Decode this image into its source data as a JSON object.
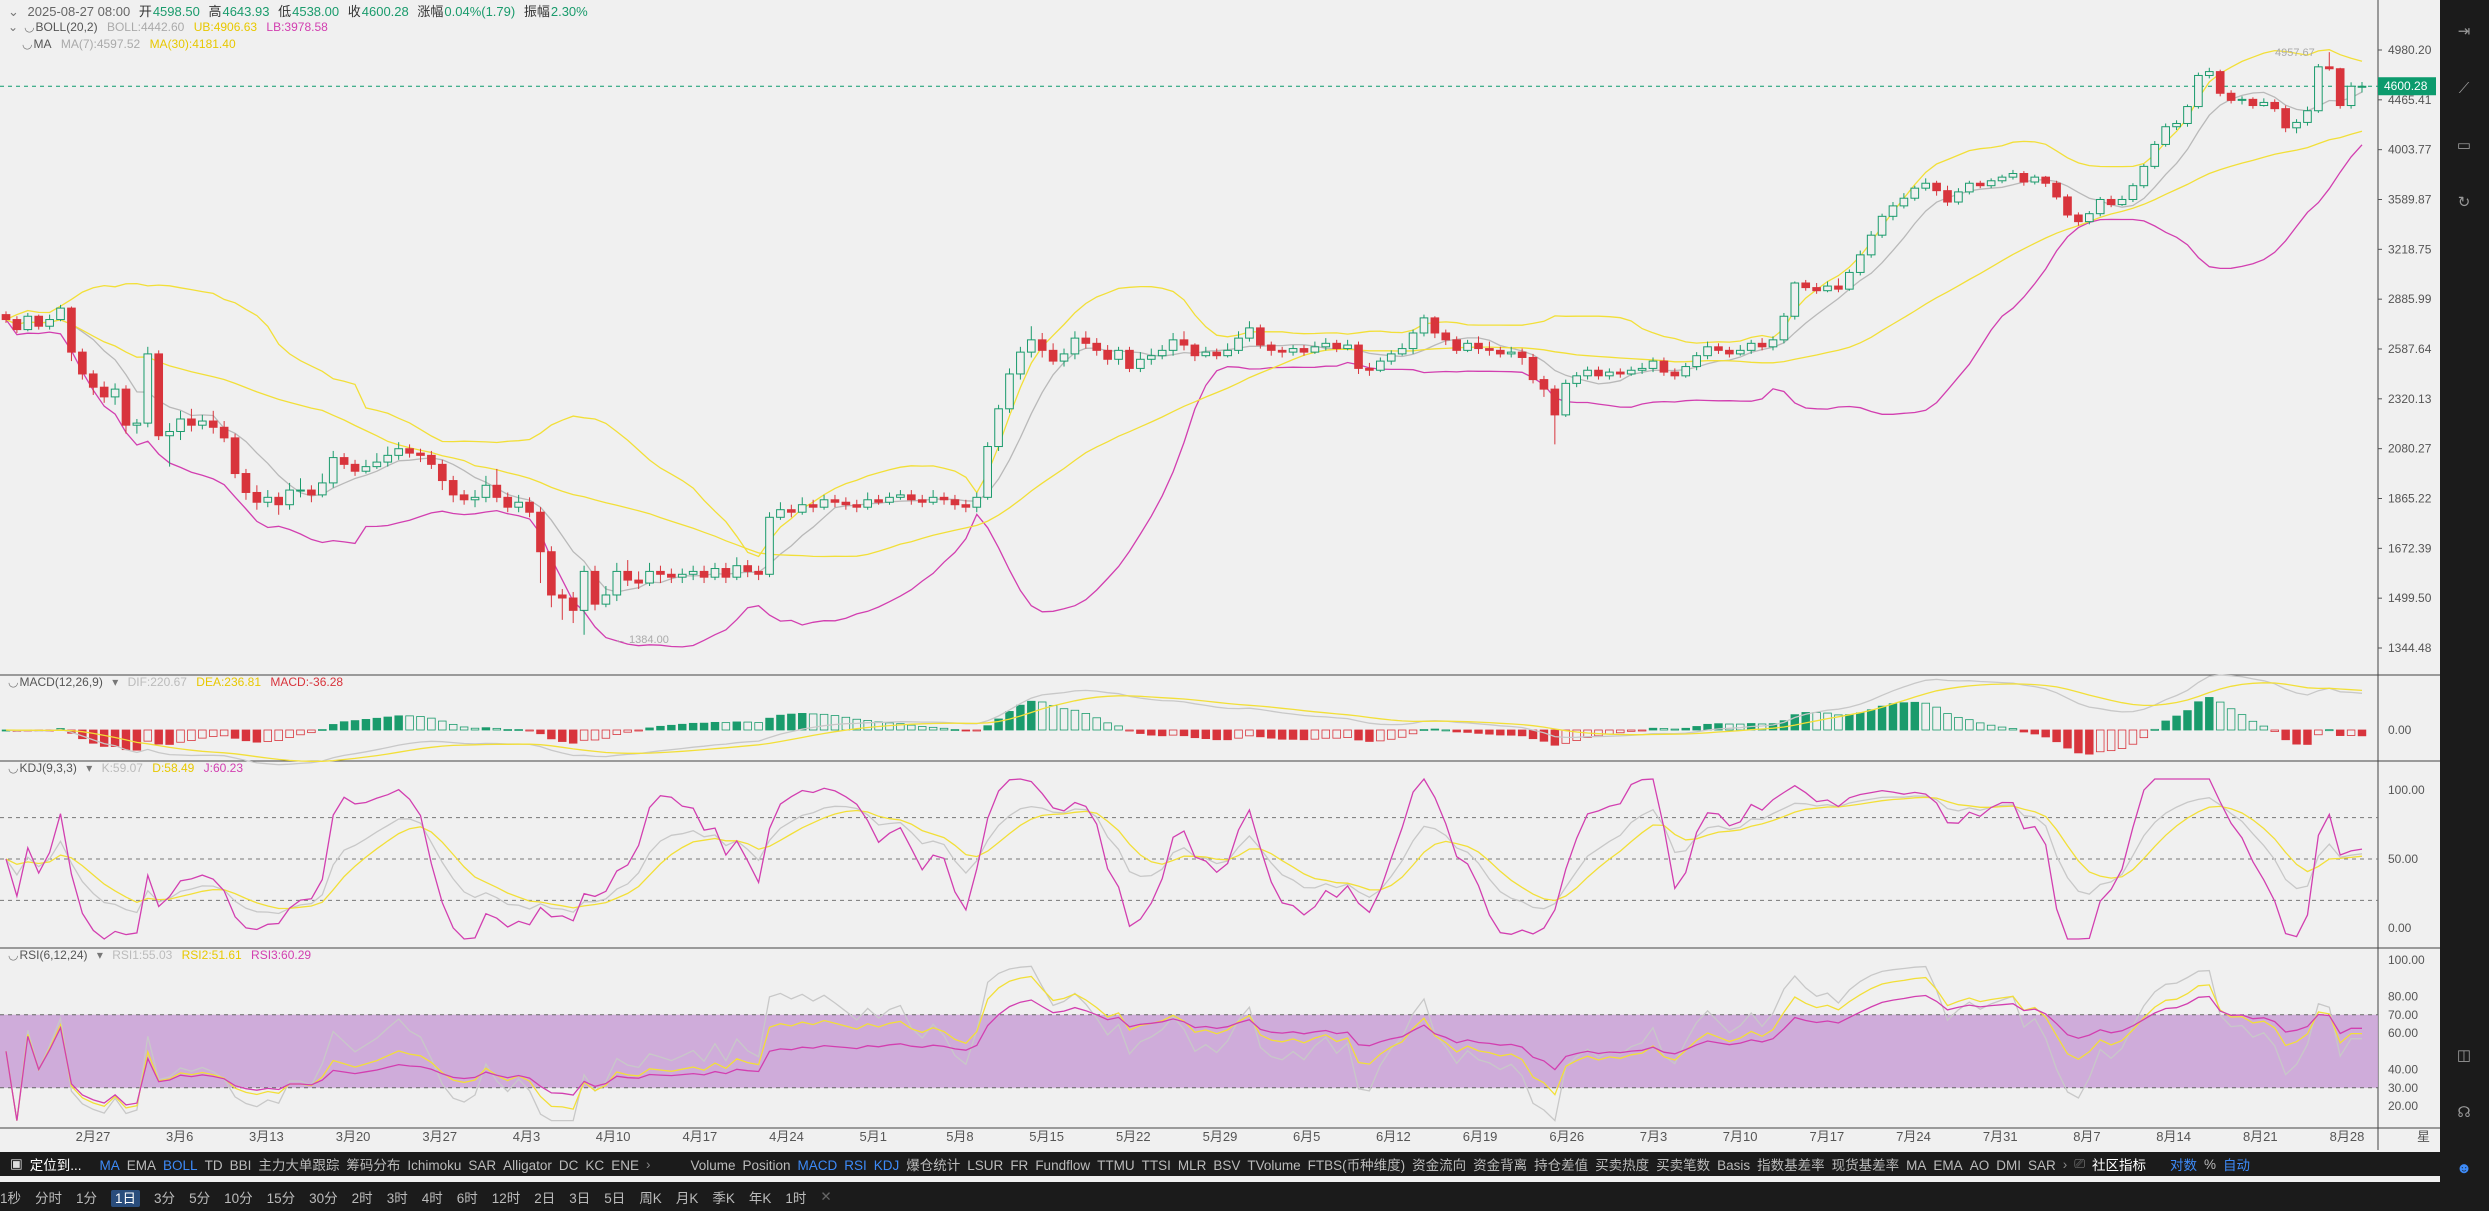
{
  "header": {
    "date": "2025-08-27 08:00",
    "open_label": "开",
    "open": "4598.50",
    "high_label": "高",
    "high": "4643.93",
    "low_label": "低",
    "low": "4538.00",
    "close_label": "收",
    "close": "4600.28",
    "change_label": "涨幅",
    "change": "0.04%(1.79)",
    "amp_label": "振幅",
    "amp": "2.30%"
  },
  "overlays": {
    "boll": {
      "name": "BOLL(20,2)",
      "mid": "BOLL:4442.60",
      "ub": "UB:4906.63",
      "lb": "LB:3978.58"
    },
    "ma": {
      "name": "MA",
      "ma7": "MA(7):4597.52",
      "ma30": "MA(30):4181.40"
    }
  },
  "panels": {
    "macd": {
      "name": "MACD(12,26,9)",
      "dif": "DIF:220.67",
      "dea": "DEA:236.81",
      "macd": "MACD:-36.28"
    },
    "kdj": {
      "name": "KDJ(9,3,3)",
      "k": "K:59.07",
      "d": "D:58.49",
      "j": "J:60.23"
    },
    "rsi": {
      "name": "RSI(6,12,24)",
      "r1": "RSI1:55.03",
      "r2": "RSI2:51.61",
      "r3": "RSI3:60.29"
    }
  },
  "colors": {
    "up": "#1a9b6c",
    "down": "#d8343c",
    "boll_band": "#f2df38",
    "boll_lower": "#d23fb0",
    "ma_mid": "#b9b9b9",
    "price_tag": "#0c9b6d",
    "rsi_band": "#c9a0d6",
    "accent": "#3d8af7"
  },
  "chart_data": {
    "type": "candlestick",
    "current_price": "4600.28",
    "high_marker": "4957.67",
    "low_marker": "1384.00",
    "y_axis_labels": [
      "4980.20",
      "4465.41",
      "4003.77",
      "3589.87",
      "3218.75",
      "2885.99",
      "2587.64",
      "2320.13",
      "2080.27",
      "1865.22",
      "1672.39",
      "1499.50",
      "1344.48"
    ],
    "macd_axis_labels": [
      "0.00"
    ],
    "kdj_axis_labels": [
      "100.00",
      "50.00",
      "0.00"
    ],
    "rsi_axis_labels": [
      "100.00",
      "80.00",
      "70.00",
      "60.00",
      "40.00",
      "30.00",
      "20.00"
    ],
    "x_labels": [
      "2月27",
      "3月6",
      "3月13",
      "3月20",
      "3月27",
      "4月3",
      "4月10",
      "4月17",
      "4月24",
      "5月1",
      "5月8",
      "5月15",
      "5月22",
      "5月29",
      "6月5",
      "6月12",
      "6月19",
      "6月26",
      "7月3",
      "7月10",
      "7月17",
      "7月24",
      "7月31",
      "8月7",
      "8月14",
      "8月21",
      "8月28"
    ],
    "x_label_tail": "星",
    "candles": [
      [
        2790,
        2760,
        2810,
        2740
      ],
      [
        2760,
        2700,
        2780,
        2680
      ],
      [
        2700,
        2780,
        2800,
        2690
      ],
      [
        2780,
        2720,
        2790,
        2700
      ],
      [
        2720,
        2760,
        2790,
        2700
      ],
      [
        2760,
        2830,
        2850,
        2750
      ],
      [
        2830,
        2570,
        2840,
        2520
      ],
      [
        2570,
        2450,
        2590,
        2420
      ],
      [
        2450,
        2380,
        2470,
        2340
      ],
      [
        2380,
        2330,
        2410,
        2300
      ],
      [
        2330,
        2370,
        2400,
        2290
      ],
      [
        2370,
        2190,
        2390,
        2150
      ],
      [
        2190,
        2200,
        2220,
        2150
      ],
      [
        2200,
        2560,
        2600,
        2180
      ],
      [
        2560,
        2140,
        2580,
        2120
      ],
      [
        2140,
        2160,
        2200,
        2000
      ],
      [
        2160,
        2220,
        2260,
        2120
      ],
      [
        2220,
        2190,
        2270,
        2160
      ],
      [
        2190,
        2210,
        2240,
        2170
      ],
      [
        2210,
        2180,
        2260,
        2150
      ],
      [
        2180,
        2130,
        2210,
        2110
      ],
      [
        2130,
        1970,
        2150,
        1950
      ],
      [
        1970,
        1890,
        1990,
        1860
      ],
      [
        1890,
        1850,
        1920,
        1820
      ],
      [
        1850,
        1870,
        1900,
        1830
      ],
      [
        1870,
        1840,
        1890,
        1800
      ],
      [
        1840,
        1900,
        1930,
        1820
      ],
      [
        1900,
        1900,
        1950,
        1870
      ],
      [
        1900,
        1880,
        1920,
        1850
      ],
      [
        1880,
        1930,
        1970,
        1870
      ],
      [
        1930,
        2040,
        2070,
        1910
      ],
      [
        2040,
        2010,
        2060,
        1990
      ],
      [
        2010,
        1980,
        2030,
        1960
      ],
      [
        1980,
        2000,
        2030,
        1970
      ],
      [
        2000,
        2020,
        2060,
        1990
      ],
      [
        2020,
        2050,
        2090,
        2000
      ],
      [
        2050,
        2080,
        2110,
        2030
      ],
      [
        2080,
        2060,
        2100,
        2040
      ],
      [
        2060,
        2050,
        2080,
        2020
      ],
      [
        2050,
        2010,
        2070,
        1990
      ],
      [
        2010,
        1940,
        2030,
        1900
      ],
      [
        1940,
        1880,
        1960,
        1850
      ],
      [
        1880,
        1860,
        1900,
        1840
      ],
      [
        1860,
        1870,
        1900,
        1830
      ],
      [
        1870,
        1920,
        1960,
        1850
      ],
      [
        1920,
        1870,
        1990,
        1850
      ],
      [
        1870,
        1830,
        1890,
        1810
      ],
      [
        1830,
        1850,
        1880,
        1810
      ],
      [
        1850,
        1810,
        1870,
        1790
      ],
      [
        1810,
        1660,
        1830,
        1550
      ],
      [
        1660,
        1510,
        1680,
        1470
      ],
      [
        1510,
        1500,
        1530,
        1430
      ],
      [
        1500,
        1460,
        1520,
        1420
      ],
      [
        1460,
        1590,
        1610,
        1384
      ],
      [
        1590,
        1480,
        1610,
        1460
      ],
      [
        1480,
        1510,
        1540,
        1470
      ],
      [
        1510,
        1590,
        1620,
        1490
      ],
      [
        1590,
        1560,
        1630,
        1540
      ],
      [
        1560,
        1550,
        1590,
        1530
      ],
      [
        1550,
        1590,
        1620,
        1540
      ],
      [
        1590,
        1580,
        1610,
        1550
      ],
      [
        1580,
        1570,
        1600,
        1550
      ],
      [
        1570,
        1580,
        1600,
        1550
      ],
      [
        1580,
        1590,
        1610,
        1560
      ],
      [
        1590,
        1570,
        1610,
        1550
      ],
      [
        1570,
        1600,
        1620,
        1560
      ],
      [
        1600,
        1570,
        1620,
        1550
      ],
      [
        1570,
        1610,
        1640,
        1560
      ],
      [
        1610,
        1590,
        1630,
        1570
      ],
      [
        1590,
        1580,
        1610,
        1560
      ],
      [
        1580,
        1790,
        1810,
        1570
      ],
      [
        1790,
        1820,
        1850,
        1780
      ],
      [
        1820,
        1810,
        1840,
        1790
      ],
      [
        1810,
        1840,
        1870,
        1800
      ],
      [
        1840,
        1830,
        1860,
        1810
      ],
      [
        1830,
        1860,
        1880,
        1820
      ],
      [
        1860,
        1850,
        1880,
        1830
      ],
      [
        1850,
        1840,
        1870,
        1820
      ],
      [
        1840,
        1830,
        1860,
        1810
      ],
      [
        1830,
        1860,
        1890,
        1820
      ],
      [
        1860,
        1850,
        1880,
        1840
      ],
      [
        1850,
        1870,
        1890,
        1840
      ],
      [
        1870,
        1880,
        1900,
        1860
      ],
      [
        1880,
        1860,
        1900,
        1840
      ],
      [
        1860,
        1850,
        1880,
        1830
      ],
      [
        1850,
        1870,
        1900,
        1840
      ],
      [
        1870,
        1860,
        1890,
        1840
      ],
      [
        1860,
        1840,
        1880,
        1820
      ],
      [
        1840,
        1830,
        1860,
        1810
      ],
      [
        1830,
        1870,
        1890,
        1810
      ],
      [
        1870,
        2090,
        2110,
        1860
      ],
      [
        2090,
        2270,
        2290,
        2070
      ],
      [
        2270,
        2450,
        2480,
        2250
      ],
      [
        2450,
        2570,
        2600,
        2420
      ],
      [
        2570,
        2640,
        2720,
        2540
      ],
      [
        2640,
        2580,
        2680,
        2540
      ],
      [
        2580,
        2520,
        2620,
        2500
      ],
      [
        2520,
        2560,
        2590,
        2490
      ],
      [
        2560,
        2650,
        2690,
        2530
      ],
      [
        2650,
        2620,
        2690,
        2590
      ],
      [
        2620,
        2580,
        2650,
        2550
      ],
      [
        2580,
        2530,
        2610,
        2500
      ],
      [
        2530,
        2580,
        2600,
        2500
      ],
      [
        2580,
        2480,
        2600,
        2460
      ],
      [
        2480,
        2530,
        2570,
        2460
      ],
      [
        2530,
        2550,
        2590,
        2500
      ],
      [
        2550,
        2580,
        2610,
        2530
      ],
      [
        2580,
        2640,
        2680,
        2550
      ],
      [
        2640,
        2610,
        2690,
        2580
      ],
      [
        2610,
        2550,
        2620,
        2520
      ],
      [
        2550,
        2570,
        2600,
        2540
      ],
      [
        2570,
        2550,
        2590,
        2530
      ],
      [
        2550,
        2580,
        2620,
        2540
      ],
      [
        2580,
        2650,
        2690,
        2560
      ],
      [
        2650,
        2710,
        2750,
        2630
      ],
      [
        2710,
        2610,
        2730,
        2590
      ],
      [
        2610,
        2580,
        2630,
        2550
      ],
      [
        2580,
        2570,
        2600,
        2540
      ],
      [
        2570,
        2590,
        2610,
        2550
      ],
      [
        2590,
        2570,
        2610,
        2550
      ],
      [
        2570,
        2600,
        2630,
        2560
      ],
      [
        2600,
        2620,
        2650,
        2580
      ],
      [
        2620,
        2590,
        2640,
        2570
      ],
      [
        2590,
        2610,
        2640,
        2580
      ],
      [
        2610,
        2480,
        2630,
        2450
      ],
      [
        2480,
        2470,
        2510,
        2440
      ],
      [
        2470,
        2520,
        2540,
        2460
      ],
      [
        2520,
        2560,
        2580,
        2500
      ],
      [
        2560,
        2590,
        2620,
        2550
      ],
      [
        2590,
        2680,
        2700,
        2560
      ],
      [
        2680,
        2770,
        2790,
        2660
      ],
      [
        2770,
        2680,
        2780,
        2650
      ],
      [
        2680,
        2640,
        2700,
        2610
      ],
      [
        2640,
        2580,
        2660,
        2560
      ],
      [
        2580,
        2620,
        2640,
        2570
      ],
      [
        2620,
        2590,
        2660,
        2560
      ],
      [
        2590,
        2580,
        2630,
        2550
      ],
      [
        2580,
        2560,
        2600,
        2540
      ],
      [
        2560,
        2570,
        2600,
        2540
      ],
      [
        2570,
        2540,
        2590,
        2500
      ],
      [
        2540,
        2420,
        2560,
        2400
      ],
      [
        2420,
        2370,
        2440,
        2330
      ],
      [
        2370,
        2240,
        2390,
        2100
      ],
      [
        2240,
        2400,
        2420,
        2230
      ],
      [
        2400,
        2440,
        2460,
        2380
      ],
      [
        2440,
        2470,
        2490,
        2420
      ],
      [
        2470,
        2440,
        2490,
        2420
      ],
      [
        2440,
        2460,
        2480,
        2420
      ],
      [
        2460,
        2450,
        2480,
        2430
      ],
      [
        2450,
        2470,
        2490,
        2440
      ],
      [
        2470,
        2480,
        2510,
        2450
      ],
      [
        2480,
        2520,
        2540,
        2460
      ],
      [
        2520,
        2460,
        2540,
        2440
      ],
      [
        2460,
        2440,
        2480,
        2420
      ],
      [
        2440,
        2490,
        2510,
        2430
      ],
      [
        2490,
        2550,
        2570,
        2470
      ],
      [
        2550,
        2600,
        2630,
        2530
      ],
      [
        2600,
        2580,
        2620,
        2560
      ],
      [
        2580,
        2560,
        2600,
        2540
      ],
      [
        2560,
        2580,
        2610,
        2550
      ],
      [
        2580,
        2620,
        2640,
        2560
      ],
      [
        2620,
        2600,
        2650,
        2580
      ],
      [
        2600,
        2640,
        2660,
        2580
      ],
      [
        2640,
        2780,
        2800,
        2620
      ],
      [
        2780,
        2990,
        3000,
        2760
      ],
      [
        2990,
        2960,
        3010,
        2940
      ],
      [
        2960,
        2940,
        2990,
        2920
      ],
      [
        2940,
        2970,
        3000,
        2930
      ],
      [
        2970,
        2950,
        3020,
        2930
      ],
      [
        2950,
        3060,
        3080,
        2940
      ],
      [
        3060,
        3180,
        3210,
        3040
      ],
      [
        3180,
        3320,
        3350,
        3160
      ],
      [
        3320,
        3460,
        3480,
        3300
      ],
      [
        3460,
        3540,
        3570,
        3430
      ],
      [
        3540,
        3600,
        3640,
        3520
      ],
      [
        3600,
        3680,
        3700,
        3580
      ],
      [
        3680,
        3720,
        3760,
        3660
      ],
      [
        3720,
        3660,
        3740,
        3620
      ],
      [
        3660,
        3570,
        3700,
        3540
      ],
      [
        3570,
        3650,
        3680,
        3550
      ],
      [
        3650,
        3720,
        3740,
        3630
      ],
      [
        3720,
        3700,
        3740,
        3680
      ],
      [
        3700,
        3740,
        3760,
        3680
      ],
      [
        3740,
        3770,
        3790,
        3720
      ],
      [
        3770,
        3800,
        3830,
        3750
      ],
      [
        3800,
        3730,
        3820,
        3700
      ],
      [
        3730,
        3770,
        3790,
        3710
      ],
      [
        3770,
        3720,
        3780,
        3690
      ],
      [
        3720,
        3610,
        3740,
        3590
      ],
      [
        3610,
        3470,
        3630,
        3450
      ],
      [
        3470,
        3420,
        3490,
        3390
      ],
      [
        3420,
        3480,
        3500,
        3400
      ],
      [
        3480,
        3590,
        3610,
        3460
      ],
      [
        3590,
        3550,
        3620,
        3530
      ],
      [
        3550,
        3590,
        3620,
        3540
      ],
      [
        3590,
        3700,
        3720,
        3570
      ],
      [
        3700,
        3860,
        3880,
        3680
      ],
      [
        3860,
        4050,
        4080,
        3840
      ],
      [
        4050,
        4210,
        4240,
        4030
      ],
      [
        4210,
        4240,
        4270,
        4180
      ],
      [
        4240,
        4400,
        4420,
        4210
      ],
      [
        4400,
        4710,
        4740,
        4380
      ],
      [
        4710,
        4750,
        4790,
        4680
      ],
      [
        4750,
        4530,
        4770,
        4500
      ],
      [
        4530,
        4460,
        4560,
        4430
      ],
      [
        4460,
        4470,
        4500,
        4420
      ],
      [
        4470,
        4410,
        4490,
        4380
      ],
      [
        4410,
        4440,
        4480,
        4400
      ],
      [
        4440,
        4380,
        4470,
        4350
      ],
      [
        4380,
        4200,
        4410,
        4160
      ],
      [
        4200,
        4250,
        4280,
        4150
      ],
      [
        4250,
        4360,
        4400,
        4220
      ],
      [
        4360,
        4800,
        4830,
        4340
      ],
      [
        4800,
        4780,
        4957,
        4760
      ],
      [
        4780,
        4410,
        4790,
        4380
      ],
      [
        4410,
        4600,
        4640,
        4380
      ],
      [
        4598,
        4600,
        4643,
        4538
      ]
    ]
  },
  "toolbar": {
    "main_label": "定位到...",
    "indicators": [
      "MA",
      "EMA",
      "BOLL",
      "TD",
      "BBI",
      "主力大单跟踪",
      "筹码分布",
      "Ichimoku",
      "SAR",
      "Alligator",
      "DC",
      "KC",
      "ENE"
    ],
    "indicators_on": [
      "MA",
      "BOLL"
    ],
    "sub_indicators": [
      "Volume",
      "Position",
      "MACD",
      "RSI",
      "KDJ",
      "爆仓统计",
      "LSUR",
      "FR",
      "Fundflow",
      "TTMU",
      "TTSI",
      "MLR",
      "BSV",
      "TVolume",
      "FTBS(币种维度)",
      "资金流向",
      "资金背离",
      "持仓差值",
      "买卖热度",
      "买卖笔数",
      "Basis",
      "指数基差率",
      "现货基差率",
      "MA",
      "EMA",
      "AO",
      "DMI",
      "SAR"
    ],
    "sub_on": [
      "MACD",
      "RSI",
      "KDJ"
    ],
    "community": "社区指标",
    "log": "对数",
    "pct": "%",
    "auto": "自动"
  },
  "timeframes": [
    "1秒",
    "分时",
    "1分",
    "1日",
    "3分",
    "5分",
    "10分",
    "15分",
    "30分",
    "2时",
    "3时",
    "4时",
    "6时",
    "12时",
    "2日",
    "3日",
    "5日",
    "周K",
    "月K",
    "季K",
    "年K",
    "1时"
  ],
  "selected_timeframe": "1日"
}
